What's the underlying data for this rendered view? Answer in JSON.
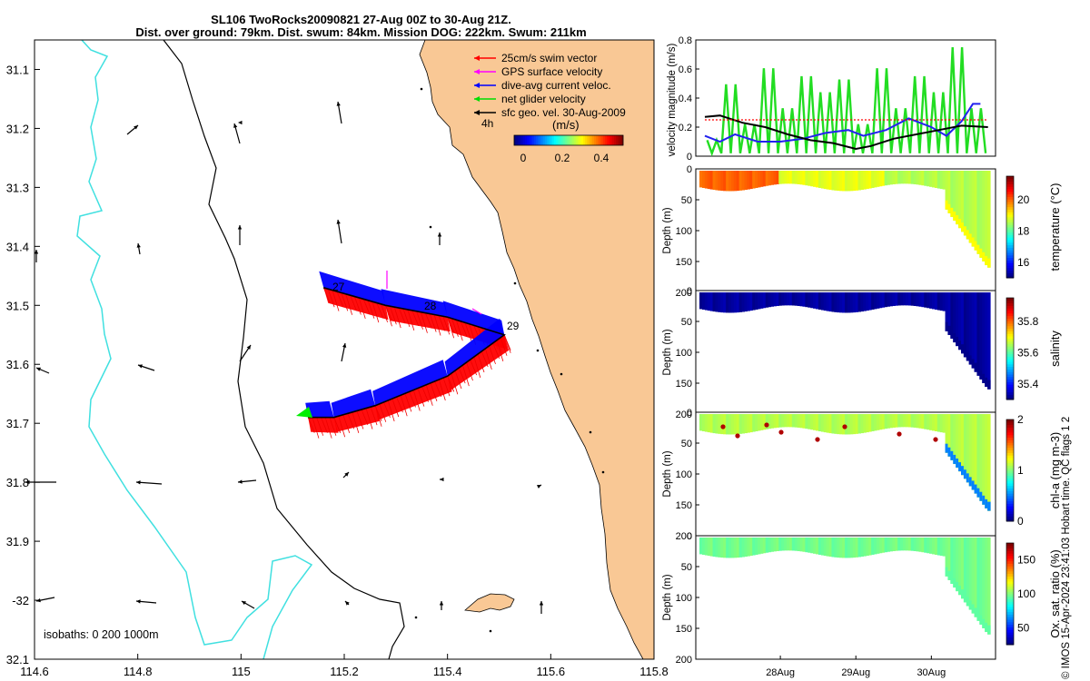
{
  "header": {
    "title_line1": "SL106 TwoRocks20090821 27-Aug 00Z to 30-Aug 21Z.",
    "title_line2": "Dist. over ground: 79km. Dist. swum: 84km. Mission DOG: 222km. Swum: 211km"
  },
  "footer": {
    "credit": "© IMOS 15-Apr-2024 23:41:03 Hobart time. QC flags 1  2"
  },
  "colors": {
    "land": "#f9c895",
    "isobath_200": "#000000",
    "isobath_1000": "#40e0e0",
    "swim_vector": "#ff0000",
    "gps_velocity": "#ff00ff",
    "current_velocity": "#0000ff",
    "net_glider": "#00ee00",
    "geostrophic": "#000000"
  },
  "map": {
    "legend": [
      {
        "label": "25cm/s swim vector",
        "color": "#ff0000"
      },
      {
        "label": "GPS surface velocity",
        "color": "#ff00ff"
      },
      {
        "label": "dive-avg current veloc.",
        "color": "#0000ff"
      },
      {
        "label": "net glider velocity",
        "color": "#00dd00"
      },
      {
        "label": "sfc geo. vel. 30-Aug-2009",
        "color": "#000000"
      }
    ],
    "colorbar_title": "(m/s)",
    "colorbar_ticks": [
      "0",
      "0.2",
      "0.4"
    ],
    "time_step_label": "4h",
    "isobath_label": "isobaths: 0   200  1000m",
    "day_labels": [
      "27",
      "28",
      "29"
    ]
  },
  "chart_data": [
    {
      "type": "map",
      "x_ticks": [
        114.6,
        114.8,
        115,
        115.2,
        115.4,
        115.6,
        115.8
      ],
      "x_tick_labels": [
        "114.6",
        "114.8",
        "115",
        "115.2",
        "115.4",
        "115.6",
        "115.8"
      ],
      "y_ticks": [
        -31.1,
        -31.2,
        -31.3,
        -31.4,
        -31.5,
        -31.6,
        -31.7,
        -31.8,
        -31.9,
        -32,
        -32.1
      ],
      "y_tick_labels": [
        "31.1",
        "31.2",
        "31.3",
        "31.4",
        "31.5",
        "31.6",
        "31.7",
        "31.8",
        "31.9",
        "-32",
        "32.1"
      ],
      "xlim": [
        114.6,
        115.8
      ],
      "ylim": [
        -32.1,
        -31.05
      ],
      "glider_track": [
        [
          115.16,
          -31.47
        ],
        [
          115.28,
          -31.5
        ],
        [
          115.4,
          -31.52
        ],
        [
          115.51,
          -31.55
        ],
        [
          115.4,
          -31.62
        ],
        [
          115.26,
          -31.67
        ],
        [
          115.18,
          -31.69
        ],
        [
          115.13,
          -31.69
        ]
      ],
      "coast": [
        [
          115.66,
          -31.05
        ],
        [
          115.63,
          -31.15
        ],
        [
          115.57,
          -31.3
        ],
        [
          115.52,
          -31.42
        ],
        [
          115.47,
          -31.48
        ],
        [
          115.54,
          -31.55
        ],
        [
          115.6,
          -31.63
        ],
        [
          115.63,
          -31.72
        ],
        [
          115.66,
          -31.8
        ],
        [
          115.66,
          -31.92
        ],
        [
          115.7,
          -32.0
        ],
        [
          115.72,
          -32.1
        ]
      ]
    },
    {
      "type": "line",
      "ylabel": "velocity magnitude (m/s)",
      "ylim": [
        0,
        0.8
      ],
      "y_ticks": [
        0,
        0.2,
        0.4,
        0.6,
        0.8
      ],
      "series": [
        {
          "name": "net glider velocity",
          "color": "#22dd22",
          "x": [
            0,
            0.25,
            0.5,
            0.75,
            1.0,
            1.25,
            1.5,
            1.75,
            2.0,
            2.25,
            2.5,
            2.75,
            3.0,
            3.25,
            3.5,
            3.75
          ],
          "values": [
            0.1,
            0.45,
            0.2,
            0.55,
            0.3,
            0.5,
            0.4,
            0.48,
            0.2,
            0.55,
            0.3,
            0.5,
            0.4,
            0.7,
            0.3,
            0.6
          ]
        },
        {
          "name": "dive-avg current veloc.",
          "color": "#2222ee",
          "x": [
            0,
            0.2,
            0.4,
            0.7,
            1.0,
            1.3,
            1.6,
            1.9,
            2.1,
            2.4,
            2.7,
            3.0,
            3.2,
            3.4,
            3.55,
            3.65
          ],
          "values": [
            0.14,
            0.1,
            0.15,
            0.1,
            0.1,
            0.12,
            0.16,
            0.18,
            0.14,
            0.18,
            0.26,
            0.2,
            0.14,
            0.24,
            0.36,
            0.36
          ]
        },
        {
          "name": "sfc geo. vel.",
          "color": "#000000",
          "x": [
            0,
            0.2,
            0.5,
            0.8,
            1.1,
            1.4,
            1.7,
            2.0,
            2.2,
            2.5,
            2.8,
            3.1,
            3.4,
            3.75
          ],
          "values": [
            0.27,
            0.28,
            0.23,
            0.2,
            0.15,
            0.11,
            0.09,
            0.05,
            0.07,
            0.12,
            0.15,
            0.18,
            0.21,
            0.2
          ]
        },
        {
          "name": "swim vector",
          "color": "#ff0000",
          "x": [
            0,
            3.75
          ],
          "values": [
            0.25,
            0.25
          ]
        }
      ]
    },
    {
      "type": "heatmap",
      "variable": "temperature",
      "ylabel": "Depth (m)",
      "colorbar_label": "temperature (°C)",
      "ylim": [
        200,
        0
      ],
      "y_ticks": [
        0,
        50,
        100,
        150,
        200
      ],
      "clim": [
        15,
        21.5
      ],
      "colorbar_ticks": [
        16,
        18,
        20
      ],
      "surface_value": 19.2
    },
    {
      "type": "heatmap",
      "variable": "salinity",
      "ylabel": "Depth (m)",
      "colorbar_label": "salinity",
      "ylim": [
        200,
        0
      ],
      "y_ticks": [
        0,
        50,
        100,
        150,
        200
      ],
      "clim": [
        35.3,
        35.95
      ],
      "colorbar_ticks": [
        35.4,
        35.6,
        35.8
      ],
      "surface_value": 35.32
    },
    {
      "type": "heatmap",
      "variable": "chl-a",
      "ylabel": "Depth (m)",
      "colorbar_label": "chl-a (mg m-3)",
      "ylim": [
        200,
        0
      ],
      "y_ticks": [
        0,
        50,
        100,
        150,
        200
      ],
      "clim": [
        0,
        2
      ],
      "colorbar_ticks": [
        0,
        1,
        2
      ],
      "surface_value": 1.1
    },
    {
      "type": "heatmap",
      "variable": "oxygen",
      "ylabel": "Depth (m)",
      "colorbar_label": "Ox. sat. ratio (%)",
      "ylim": [
        200,
        0
      ],
      "y_ticks": [
        0,
        50,
        100,
        150,
        200
      ],
      "clim": [
        25,
        175
      ],
      "colorbar_ticks": [
        50,
        100,
        150
      ],
      "surface_value": 98
    },
    {
      "type": "time_axis",
      "x_tick_labels": [
        "28Aug",
        "29Aug",
        "30Aug"
      ],
      "x_ticks": [
        1,
        2,
        3
      ],
      "xlim": [
        -0.12,
        3.85
      ]
    }
  ]
}
